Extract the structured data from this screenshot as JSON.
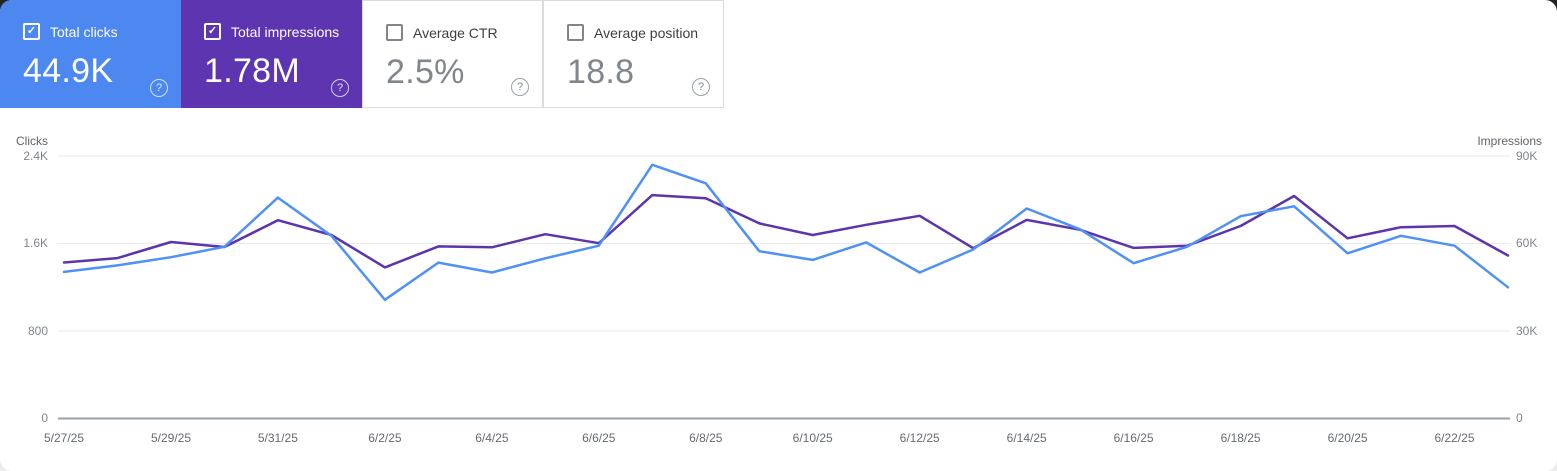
{
  "cards": [
    {
      "label": "Total clicks",
      "value": "44.9K",
      "checked": true,
      "color": "#4d87f0"
    },
    {
      "label": "Total impressions",
      "value": "1.78M",
      "checked": true,
      "color": "#5e35b1"
    },
    {
      "label": "Average CTR",
      "value": "2.5%",
      "checked": false,
      "color": null
    },
    {
      "label": "Average position",
      "value": "18.8",
      "checked": false,
      "color": null
    }
  ],
  "help_glyph": "?",
  "check_glyph": "✓",
  "chart_data": {
    "type": "line",
    "x": [
      "5/27/25",
      "5/28/25",
      "5/29/25",
      "5/30/25",
      "5/31/25",
      "6/1/25",
      "6/2/25",
      "6/3/25",
      "6/4/25",
      "6/5/25",
      "6/6/25",
      "6/7/25",
      "6/8/25",
      "6/9/25",
      "6/10/25",
      "6/11/25",
      "6/12/25",
      "6/13/25",
      "6/14/25",
      "6/15/25",
      "6/16/25",
      "6/17/25",
      "6/18/25",
      "6/19/25",
      "6/20/25",
      "6/21/25",
      "6/22/25",
      "6/23/25"
    ],
    "x_tick_labels": [
      "5/27/25",
      "5/29/25",
      "5/31/25",
      "6/2/25",
      "6/4/25",
      "6/6/25",
      "6/8/25",
      "6/10/25",
      "6/12/25",
      "6/14/25",
      "6/16/25",
      "6/18/25",
      "6/20/25",
      "6/22/25"
    ],
    "series": [
      {
        "name": "Clicks",
        "axis": "left",
        "color": "#5091f5",
        "values": [
          1340,
          1400,
          1475,
          1570,
          2020,
          1670,
          1085,
          1425,
          1335,
          1465,
          1580,
          2320,
          2150,
          1530,
          1450,
          1610,
          1335,
          1545,
          1920,
          1730,
          1420,
          1570,
          1850,
          1940,
          1510,
          1670,
          1580,
          1200
        ]
      },
      {
        "name": "Impressions",
        "axis": "right",
        "color": "#5c35ac",
        "values": [
          53500,
          55000,
          60500,
          58800,
          68000,
          62900,
          51800,
          59000,
          58700,
          63200,
          60100,
          76600,
          75500,
          66900,
          62900,
          66400,
          69500,
          58400,
          68100,
          64700,
          58500,
          59200,
          66000,
          76300,
          61800,
          65600,
          66000,
          55900
        ]
      }
    ],
    "left_axis": {
      "title": "Clicks",
      "max": 2400,
      "min": 0,
      "ticks": [
        "2.4K",
        "1.6K",
        "800",
        "0"
      ]
    },
    "right_axis": {
      "title": "Impressions",
      "max": 90000,
      "min": 0,
      "ticks": [
        "90K",
        "60K",
        "30K",
        "0"
      ]
    },
    "grid": "horizontal gridlines on",
    "legend": "none"
  }
}
